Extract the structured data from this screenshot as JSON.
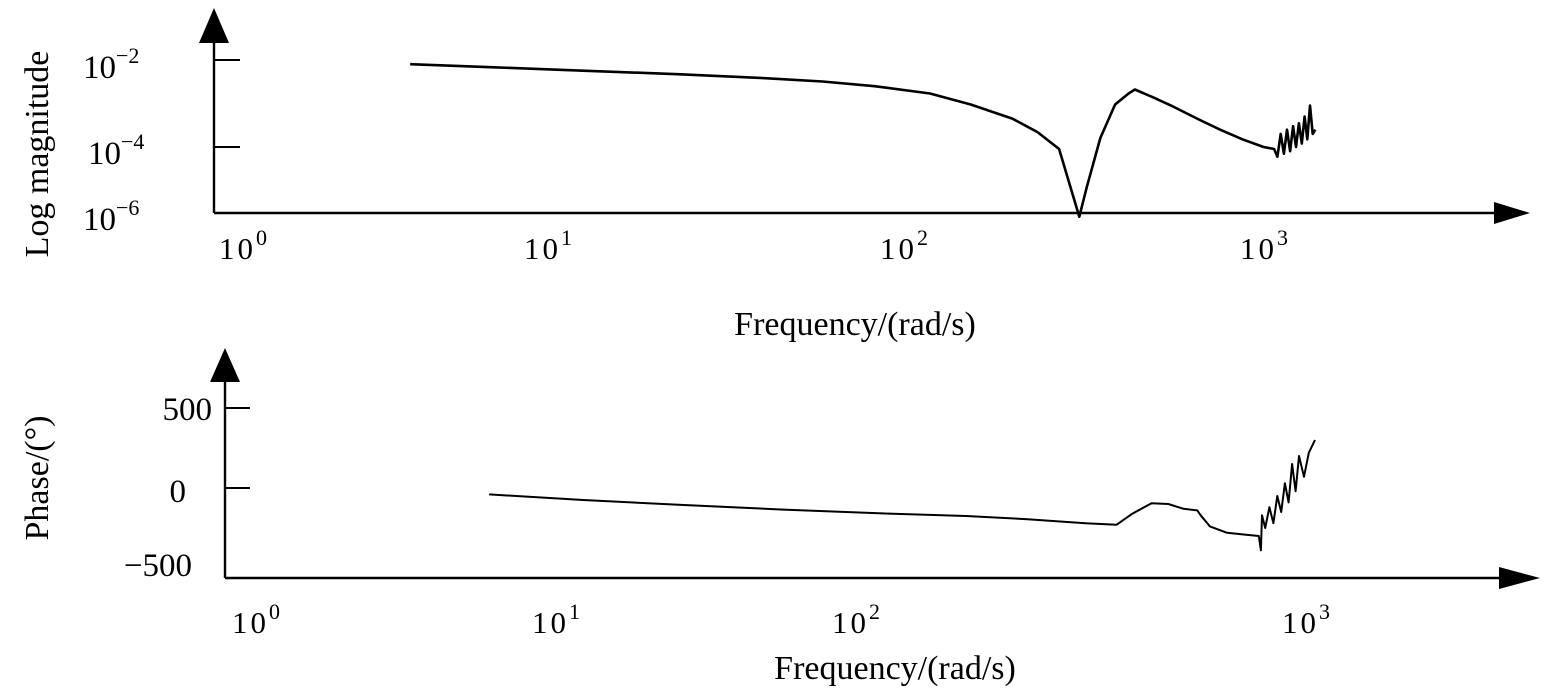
{
  "chart_data": [
    {
      "type": "line",
      "title": "",
      "xlabel": "Frequency/(rad/s)",
      "ylabel": "Log magnitude",
      "x_scale": "log",
      "y_scale": "log",
      "xlim": [
        0.7,
        3000
      ],
      "ylim": [
        1e-06,
        0.03
      ],
      "grid": false,
      "x_ticks": [
        {
          "base": "10",
          "exp": "0",
          "value": 1
        },
        {
          "base": "10",
          "exp": "1",
          "value": 10
        },
        {
          "base": "10",
          "exp": "2",
          "value": 100
        },
        {
          "base": "10",
          "exp": "3",
          "value": 1000
        }
      ],
      "y_ticks": [
        {
          "base": "10",
          "exp": "−2",
          "value": 0.01
        },
        {
          "base": "10",
          "exp": "−4",
          "value": 0.0001
        },
        {
          "base": "10",
          "exp": "−6",
          "value": 1e-06
        }
      ],
      "series": [
        {
          "x": [
            3.5,
            6,
            10,
            20,
            35,
            50,
            70,
            100,
            130,
            170,
            200,
            230,
            262,
            275,
            300,
            330,
            360,
            375,
            420,
            480,
            560,
            650,
            750,
            860,
            920,
            940,
            960,
            980,
            1000,
            1020,
            1040,
            1060,
            1080,
            1100,
            1120,
            1140,
            1160,
            1180,
            1200
          ],
          "y": [
            0.008,
            0.0068,
            0.0058,
            0.0047,
            0.0038,
            0.0032,
            0.0025,
            0.0017,
            0.00095,
            0.00045,
            0.00022,
            9e-05,
            2.5e-06,
            1.2e-05,
            0.00016,
            0.00095,
            0.0017,
            0.0021,
            0.0014,
            0.00085,
            0.00045,
            0.00025,
            0.00015,
            0.0001,
            9e-05,
            6e-05,
            0.0002,
            7e-05,
            0.00025,
            8e-05,
            0.0003,
            0.0001,
            0.00035,
            0.00012,
            0.0005,
            0.00015,
            0.0009,
            0.0002,
            0.00025
          ]
        }
      ]
    },
    {
      "type": "line",
      "title": "",
      "xlabel": "Frequency/(rad/s)",
      "ylabel": "Phase/(°)",
      "x_scale": "log",
      "y_scale": "linear",
      "xlim": [
        0.7,
        3000
      ],
      "ylim": [
        -550,
        700
      ],
      "grid": false,
      "x_ticks": [
        {
          "base": "10",
          "exp": "0",
          "value": 1
        },
        {
          "base": "10",
          "exp": "1",
          "value": 10
        },
        {
          "base": "10",
          "exp": "2",
          "value": 100
        },
        {
          "base": "10",
          "exp": "3",
          "value": 1000
        }
      ],
      "y_ticks": [
        {
          "label": "500",
          "value": 500
        },
        {
          "label": "0",
          "value": 0
        },
        {
          "label": "−500",
          "value": -500
        }
      ],
      "series": [
        {
          "x": [
            4.3,
            8,
            15,
            30,
            60,
            100,
            150,
            220,
            270,
            300,
            340,
            380,
            420,
            460,
            470,
            500,
            560,
            620,
            690,
            700,
            705,
            720,
            740,
            760,
            780,
            800,
            820,
            840,
            860,
            880,
            900,
            930,
            960,
            1000
          ],
          "y": [
            -40,
            -75,
            -105,
            -135,
            -160,
            -175,
            -195,
            -220,
            -230,
            -160,
            -95,
            -100,
            -130,
            -140,
            -170,
            -240,
            -280,
            -290,
            -300,
            -390,
            -170,
            -250,
            -120,
            -220,
            -50,
            -150,
            30,
            -90,
            150,
            -20,
            200,
            70,
            220,
            300
          ]
        }
      ]
    }
  ]
}
